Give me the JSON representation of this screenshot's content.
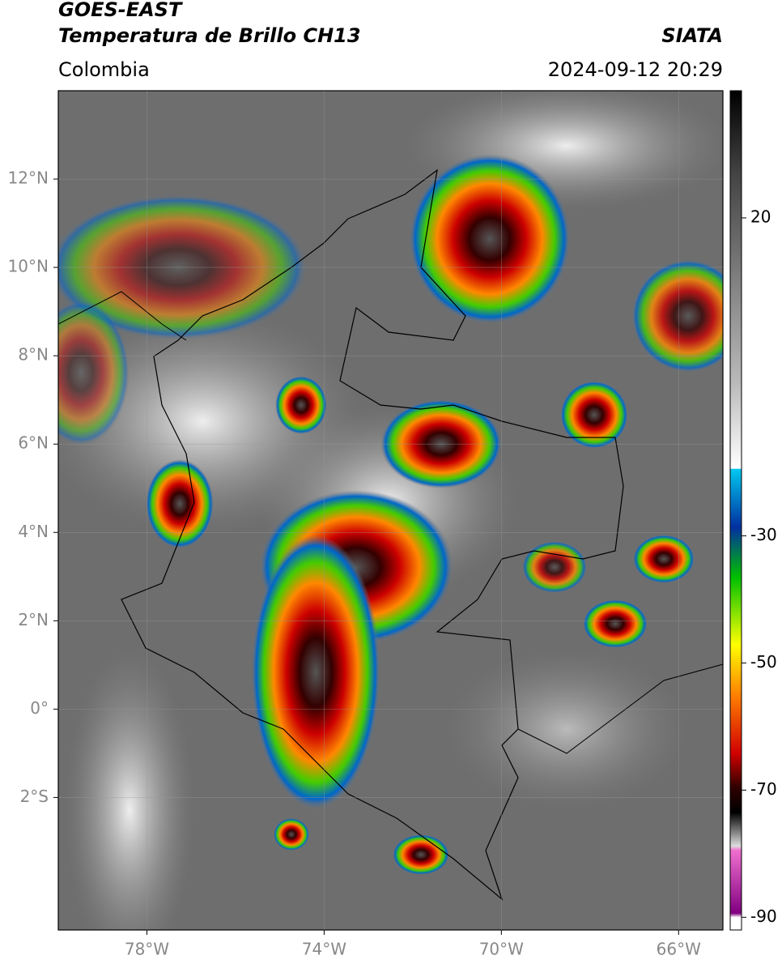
{
  "header": {
    "title": "GOES-EAST",
    "subtitle": "Temperatura de Brillo CH13",
    "region": "Colombia",
    "source": "SIATA",
    "timestamp": "2024-09-12 20:29"
  },
  "map": {
    "xlim": [
      -80,
      -65
    ],
    "ylim": [
      -5,
      14
    ],
    "xticks": [
      {
        "value": -78,
        "label": "78°W"
      },
      {
        "value": -74,
        "label": "74°W"
      },
      {
        "value": -70,
        "label": "70°W"
      },
      {
        "value": -66,
        "label": "66°W"
      }
    ],
    "yticks": [
      {
        "value": 12,
        "label": "12°N"
      },
      {
        "value": 10,
        "label": "10°N"
      },
      {
        "value": 8,
        "label": "8°N"
      },
      {
        "value": 6,
        "label": "6°N"
      },
      {
        "value": 4,
        "label": "4°N"
      },
      {
        "value": 2,
        "label": "2°N"
      },
      {
        "value": 0,
        "label": "0°"
      },
      {
        "value": -2,
        "label": "2°S"
      }
    ]
  },
  "colorbar": {
    "lim": [
      -92,
      40
    ],
    "ticks": [
      20,
      -30,
      -50,
      -70,
      -90
    ]
  }
}
